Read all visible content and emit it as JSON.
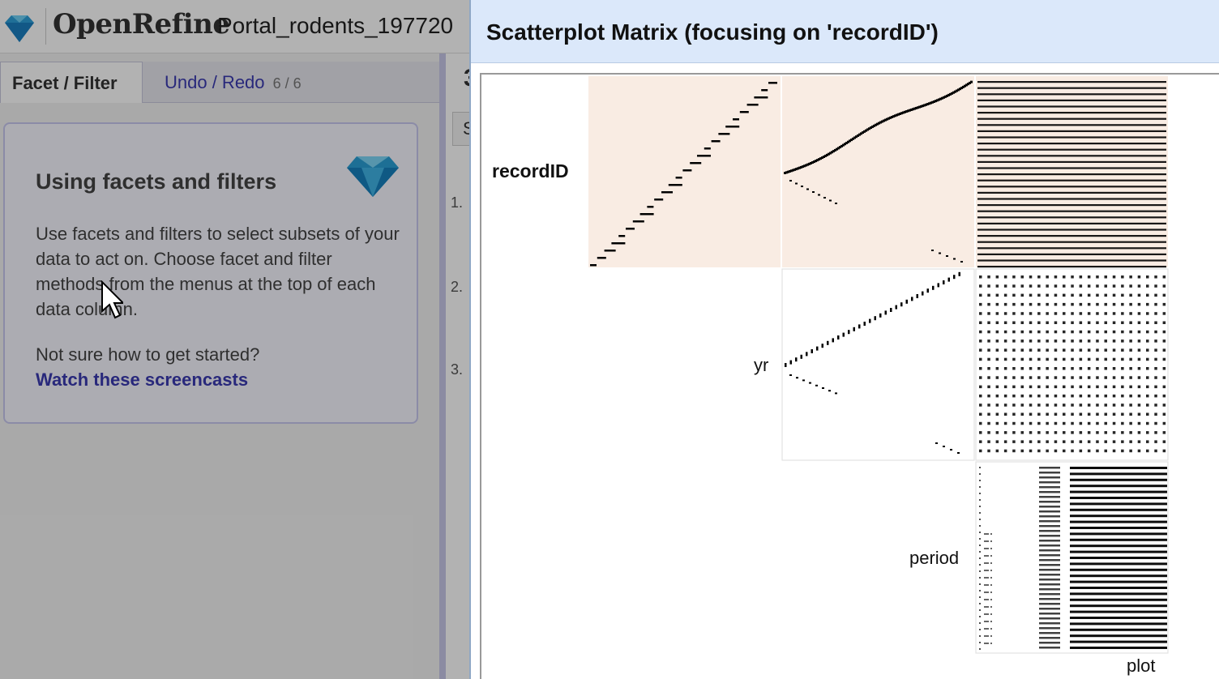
{
  "header": {
    "app_name": "OpenRefine",
    "project_name": "Portal_rodents_197720"
  },
  "left_panel": {
    "tabs": [
      {
        "label": "Facet / Filter",
        "active": true
      },
      {
        "label": "Undo / Redo",
        "count": "6 / 6",
        "active": false
      }
    ],
    "help": {
      "title": "Using facets and filters",
      "text": "Use facets and filters to select subsets of your data to act on. Choose facet and filter methods from the menus at the top of each data column.",
      "question": "Not sure how to get started?",
      "link": "Watch these screencasts"
    }
  },
  "data_strip": {
    "count_partial": "3",
    "toolbar_partial": "S",
    "row_numbers": [
      "1.",
      "2.",
      "3."
    ]
  },
  "dialog": {
    "title": "Scatterplot Matrix (focusing on 'recordID')",
    "columns": [
      {
        "name": "recordID",
        "focus": true
      },
      {
        "name": "yr",
        "focus": false
      },
      {
        "name": "period",
        "focus": false
      },
      {
        "name": "plot",
        "focus": false
      }
    ],
    "colors": {
      "focus_cell_bg": "#f9ece3",
      "header_bg": "#dbe8fa",
      "link": "#3a3ab0"
    }
  }
}
